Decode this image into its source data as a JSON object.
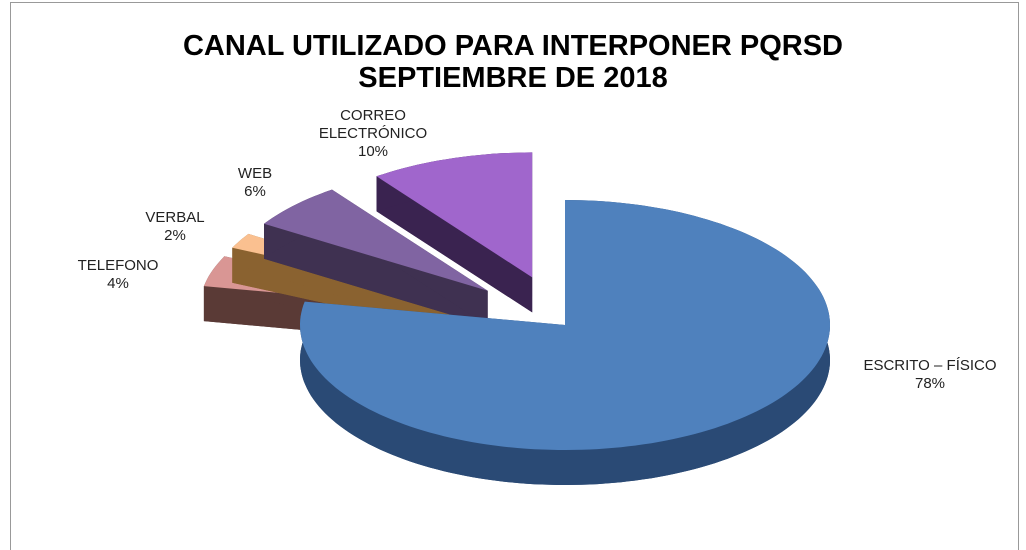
{
  "chart_data": {
    "type": "pie",
    "title": "CANAL UTILIZADO PARA INTERPONER PQRSD",
    "subtitle": "SEPTIEMBRE DE 2018",
    "categories": [
      "ESCRITO – FÍSICO",
      "TELEFONO",
      "VERBAL",
      "WEB",
      "CORREO ELECTRÓNICO"
    ],
    "values": [
      78,
      4,
      2,
      6,
      10
    ],
    "value_labels": [
      "78%",
      "4%",
      "2%",
      "6%",
      "10%"
    ],
    "colors": [
      "#4f81bd",
      "#d99694",
      "#fac090",
      "#8064a2",
      "#a066cc"
    ],
    "side_colors": [
      "#2a4a75",
      "#5a3a36",
      "#8a6230",
      "#3f3151",
      "#3a2350"
    ]
  }
}
